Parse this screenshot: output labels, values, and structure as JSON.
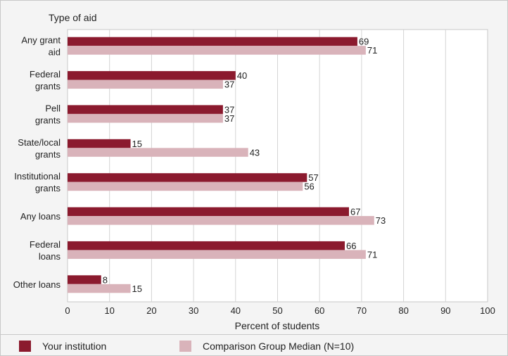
{
  "chart_data": {
    "type": "bar",
    "orientation": "horizontal",
    "title": "Type of aid",
    "xlabel": "Percent of students",
    "xlim": [
      0,
      100
    ],
    "xticks": [
      "0",
      "10",
      "20",
      "30",
      "40",
      "50",
      "60",
      "70",
      "80",
      "90",
      "100"
    ],
    "grid": true,
    "categories": [
      [
        "Any grant",
        "aid"
      ],
      [
        "Federal",
        "grants"
      ],
      [
        "Pell",
        "grants"
      ],
      [
        "State/local",
        "grants"
      ],
      [
        "Institutional",
        "grants"
      ],
      [
        "Any loans"
      ],
      [
        "Federal",
        "loans"
      ],
      [
        "Other loans"
      ]
    ],
    "series": [
      {
        "name": "Your institution",
        "color": "#8b1a2e",
        "values": [
          69,
          40,
          37,
          15,
          57,
          67,
          66,
          8
        ]
      },
      {
        "name": "Comparison Group Median (N=10)",
        "color": "#d9b3ba",
        "values": [
          71,
          37,
          37,
          43,
          56,
          73,
          71,
          15
        ]
      }
    ],
    "legend_position": "bottom"
  }
}
